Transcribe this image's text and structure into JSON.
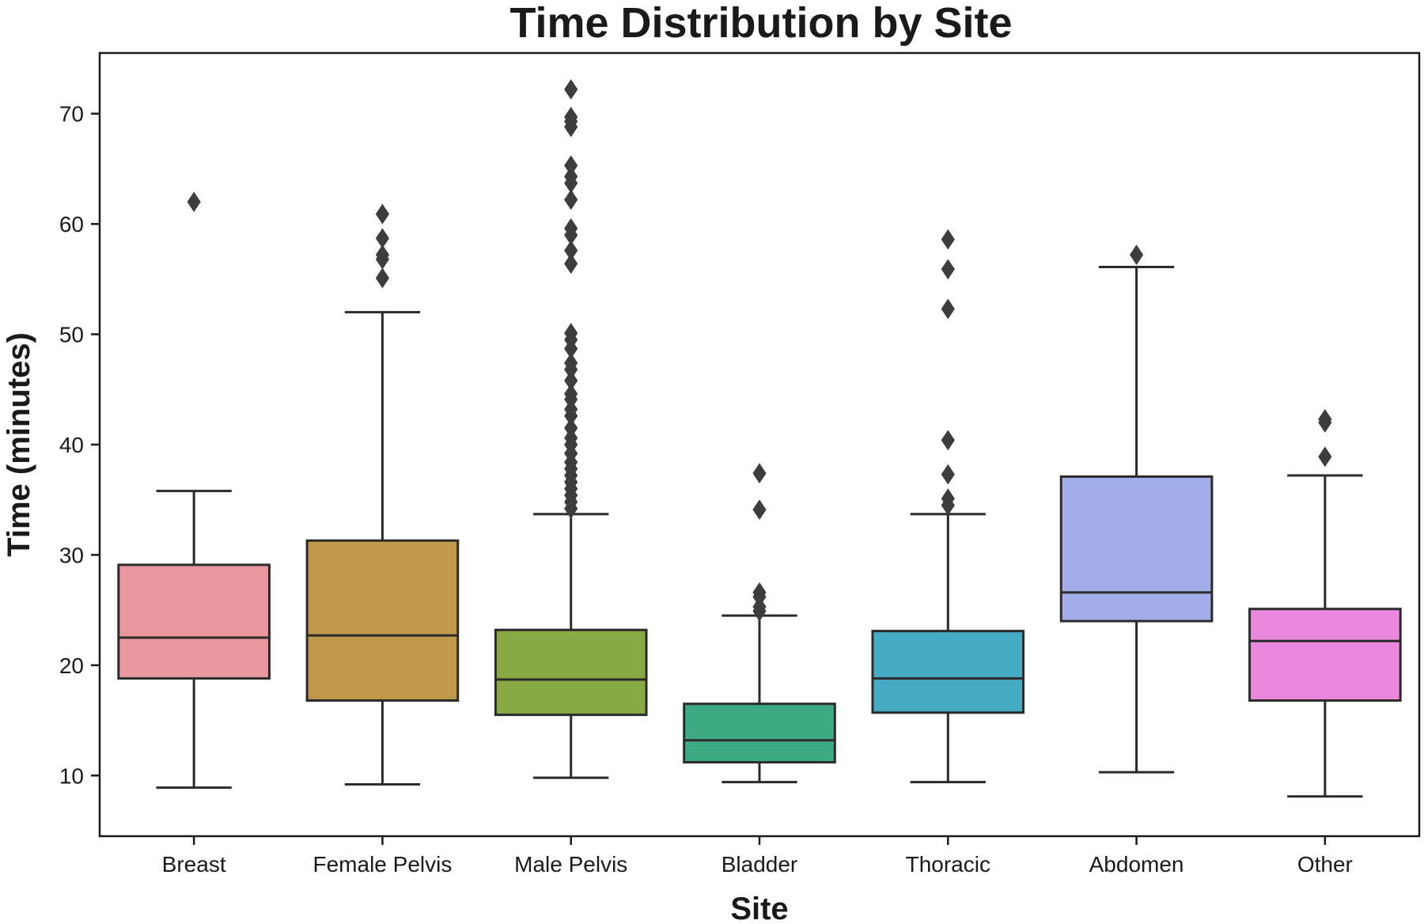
{
  "chart_data": {
    "type": "box",
    "title": "Time Distribution by Site",
    "xlabel": "Site",
    "ylabel": "Time (minutes)",
    "ylim": [
      4.5,
      75.5
    ],
    "yticks": [
      10,
      20,
      30,
      40,
      50,
      60,
      70
    ],
    "grid": false,
    "categories": [
      "Breast",
      "Female Pelvis",
      "Male Pelvis",
      "Bladder",
      "Thoracic",
      "Abdomen",
      "Other"
    ],
    "boxes": [
      {
        "name": "Breast",
        "color": "#E9969E",
        "whisker_low": 8.9,
        "q1": 18.8,
        "median": 22.5,
        "q3": 29.1,
        "whisker_high": 35.8,
        "outliers": [
          62
        ]
      },
      {
        "name": "Female Pelvis",
        "color": "#C0984A",
        "whisker_low": 9.2,
        "q1": 16.8,
        "median": 22.7,
        "q3": 31.3,
        "whisker_high": 52.0,
        "outliers": [
          55.1,
          56.8,
          57.2,
          58.7,
          60.9
        ]
      },
      {
        "name": "Male Pelvis",
        "color": "#87A845",
        "whisker_low": 9.8,
        "q1": 15.5,
        "median": 18.7,
        "q3": 23.2,
        "whisker_high": 33.7,
        "outliers": [
          34.2,
          34.8,
          35.4,
          36.0,
          36.6,
          37.2,
          37.8,
          38.4,
          39.2,
          40.0,
          40.6,
          41.5,
          42.6,
          43.2,
          44.1,
          44.6,
          45.8,
          46.8,
          47.4,
          48.7,
          49.5,
          50.1,
          56.4,
          57.6,
          59.0,
          59.6,
          62.2,
          63.7,
          64.3,
          65.3,
          68.8,
          69.3,
          69.7,
          72.2
        ]
      },
      {
        "name": "Bladder",
        "color": "#3EAA84",
        "whisker_low": 9.4,
        "q1": 11.2,
        "median": 13.2,
        "q3": 16.5,
        "whisker_high": 24.5,
        "outliers": [
          24.9,
          25.3,
          26.2,
          26.6,
          34.1,
          37.4
        ]
      },
      {
        "name": "Thoracic",
        "color": "#45ABC3",
        "whisker_low": 9.4,
        "q1": 15.7,
        "median": 18.8,
        "q3": 23.1,
        "whisker_high": 33.7,
        "outliers": [
          34.5,
          35.1,
          37.3,
          40.4,
          52.3,
          55.9,
          58.6
        ]
      },
      {
        "name": "Abdomen",
        "color": "#A1AEE9",
        "whisker_low": 10.3,
        "q1": 24.0,
        "median": 26.6,
        "q3": 37.1,
        "whisker_high": 56.1,
        "outliers": [
          57.2
        ]
      },
      {
        "name": "Other",
        "color": "#EA88DD",
        "whisker_low": 8.1,
        "q1": 16.8,
        "median": 22.2,
        "q3": 25.1,
        "whisker_high": 37.2,
        "outliers": [
          38.9,
          42.0,
          42.3
        ]
      }
    ]
  }
}
